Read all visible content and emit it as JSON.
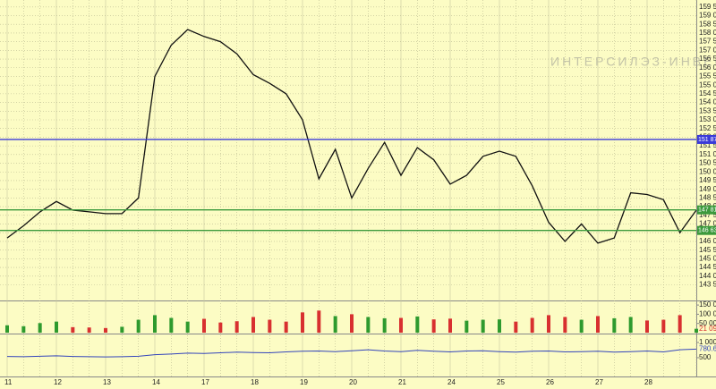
{
  "watermark": "ИНТЕРСИЛЭЗ-ИНВЕСТ",
  "chart_data": [
    {
      "type": "line",
      "color": "#111111",
      "grid": true,
      "categories": [
        "11",
        null,
        null,
        "12",
        null,
        null,
        "13",
        null,
        null,
        "14",
        null,
        null,
        "17",
        null,
        null,
        "18",
        null,
        null,
        "19",
        null,
        null,
        "20",
        null,
        null,
        "21",
        null,
        null,
        "24",
        null,
        null,
        "25",
        null,
        null,
        "26",
        null,
        null,
        "27",
        null,
        null,
        "28",
        null,
        null,
        null
      ],
      "values": [
        146200,
        146900,
        147700,
        148300,
        147800,
        147700,
        147600,
        147600,
        148500,
        155500,
        157300,
        158200,
        157800,
        157500,
        156800,
        155600,
        155100,
        154500,
        153000,
        149600,
        151300,
        148500,
        150200,
        151700,
        149800,
        151400,
        150700,
        149300,
        149800,
        150900,
        151200,
        150900,
        149200,
        147100,
        146000,
        147000,
        145900,
        146200,
        148800,
        148700,
        148400,
        146500,
        147800
      ],
      "ylim": [
        142650,
        159900
      ],
      "yticks": [
        {
          "value": 143500,
          "label": "143 500"
        },
        {
          "value": 144000,
          "label": "144 000"
        },
        {
          "value": 144500,
          "label": "144 500"
        },
        {
          "value": 145000,
          "label": "145 000"
        },
        {
          "value": 145500,
          "label": "145 500"
        },
        {
          "value": 146000,
          "label": "146 000"
        },
        {
          "value": 146500,
          "label": "146 500"
        },
        {
          "value": 147000,
          "label": "147 000"
        },
        {
          "value": 147500,
          "label": "147 500"
        },
        {
          "value": 148000,
          "label": "148 000"
        },
        {
          "value": 148500,
          "label": "148 500"
        },
        {
          "value": 149000,
          "label": "149 000"
        },
        {
          "value": 149500,
          "label": "149 500"
        },
        {
          "value": 150000,
          "label": "150 000"
        },
        {
          "value": 150500,
          "label": "150 500"
        },
        {
          "value": 151000,
          "label": "151 000"
        },
        {
          "value": 151500,
          "label": "151 500"
        },
        {
          "value": 152000,
          "label": "152 000"
        },
        {
          "value": 152500,
          "label": "152 500"
        },
        {
          "value": 153000,
          "label": "153 000"
        },
        {
          "value": 153500,
          "label": "153 500"
        },
        {
          "value": 154000,
          "label": "154 000"
        },
        {
          "value": 154500,
          "label": "154 500"
        },
        {
          "value": 155000,
          "label": "155 000"
        },
        {
          "value": 155500,
          "label": "155 500"
        },
        {
          "value": 156000,
          "label": "156 000"
        },
        {
          "value": 156500,
          "label": "156 500"
        },
        {
          "value": 157000,
          "label": "157 000"
        },
        {
          "value": 157500,
          "label": "157 500"
        },
        {
          "value": 158000,
          "label": "158 000"
        },
        {
          "value": 158500,
          "label": "158 500"
        },
        {
          "value": 159000,
          "label": "159 000"
        },
        {
          "value": 159500,
          "label": "159 500"
        }
      ],
      "hlines": [
        {
          "value": 151870,
          "label": "151 870",
          "color": "#3a3ad8"
        },
        {
          "value": 147815,
          "label": "147 815",
          "color": "#3c9a3c"
        },
        {
          "value": 146630,
          "label": "146 630",
          "color": "#3c9a3c"
        }
      ]
    },
    {
      "type": "bar",
      "up_color": "#2e9a2e",
      "down_color": "#d83030",
      "values": [
        40000,
        35000,
        52000,
        60000,
        30000,
        28000,
        25000,
        32000,
        70000,
        95000,
        80000,
        60000,
        75000,
        55000,
        62000,
        85000,
        70000,
        60000,
        110000,
        120000,
        90000,
        100000,
        85000,
        78000,
        80000,
        88000,
        72000,
        76000,
        65000,
        70000,
        72000,
        60000,
        80000,
        95000,
        85000,
        70000,
        90000,
        78000,
        85000,
        66000,
        70000,
        95000,
        21093
      ],
      "ylim": [
        0,
        165000
      ],
      "yticks": [
        {
          "value": 50000,
          "label": "50 000"
        },
        {
          "value": 100000,
          "label": "100 000"
        },
        {
          "value": 150000,
          "label": "150 000"
        }
      ],
      "last_label": "21 093"
    },
    {
      "type": "line",
      "color": "#3344bb",
      "values": [
        540,
        530,
        545,
        560,
        540,
        530,
        525,
        530,
        545,
        600,
        620,
        650,
        640,
        660,
        680,
        670,
        660,
        690,
        710,
        720,
        700,
        730,
        760,
        720,
        700,
        740,
        710,
        690,
        720,
        730,
        700,
        680,
        710,
        720,
        690,
        700,
        710,
        680,
        700,
        720,
        690,
        760,
        780.625
      ],
      "ylim": [
        -90,
        1235
      ],
      "yticks": [
        500,
        {
          "value": 1000,
          "label": "1 000"
        }
      ],
      "last_label": {
        "value": 780.625,
        "label": "780.625"
      }
    }
  ]
}
